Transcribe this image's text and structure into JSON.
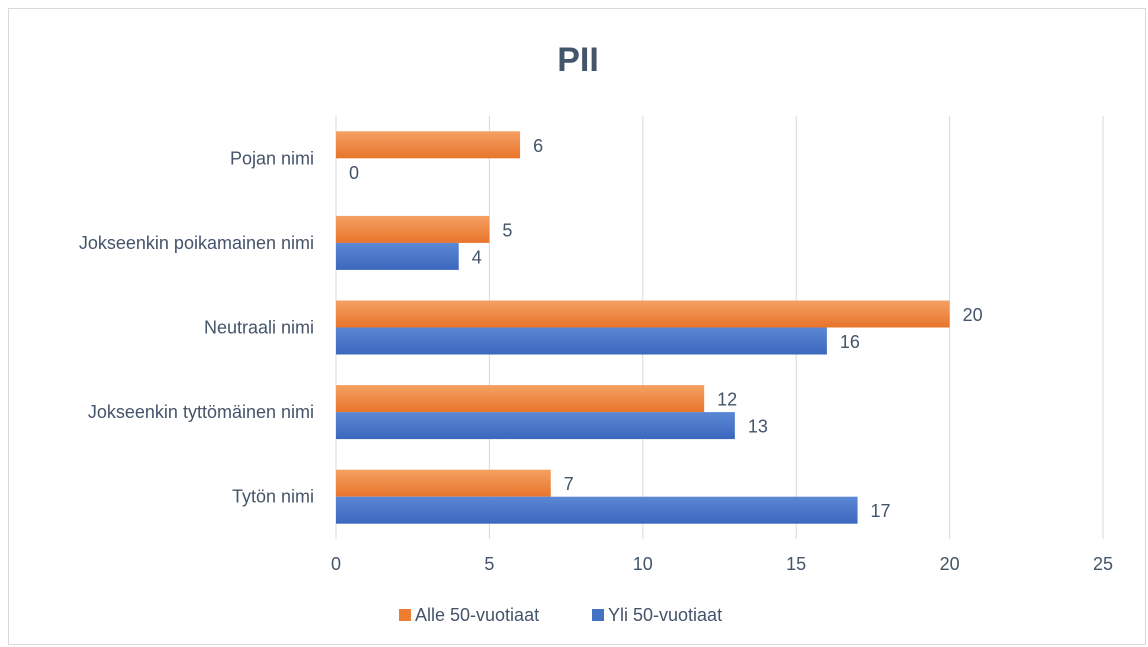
{
  "chart_data": {
    "type": "bar",
    "orientation": "horizontal",
    "title": "PII",
    "categories": [
      "Pojan nimi",
      "Jokseenkin poikamainen nimi",
      "Neutraali nimi",
      "Jokseenkin tyttömäinen nimi",
      "Tytön nimi"
    ],
    "series": [
      {
        "name": "Alle 50-vuotiaat",
        "color": "#ed7d31",
        "values": [
          6,
          5,
          20,
          12,
          7
        ]
      },
      {
        "name": "Yli 50-vuotiaat",
        "color": "#4472c4",
        "values": [
          0,
          4,
          16,
          13,
          17
        ]
      }
    ],
    "xlim": [
      0,
      25
    ],
    "xticks": [
      0,
      5,
      10,
      15,
      20,
      25
    ],
    "grid": "vertical",
    "legend": "bottom",
    "data_labels": true
  }
}
